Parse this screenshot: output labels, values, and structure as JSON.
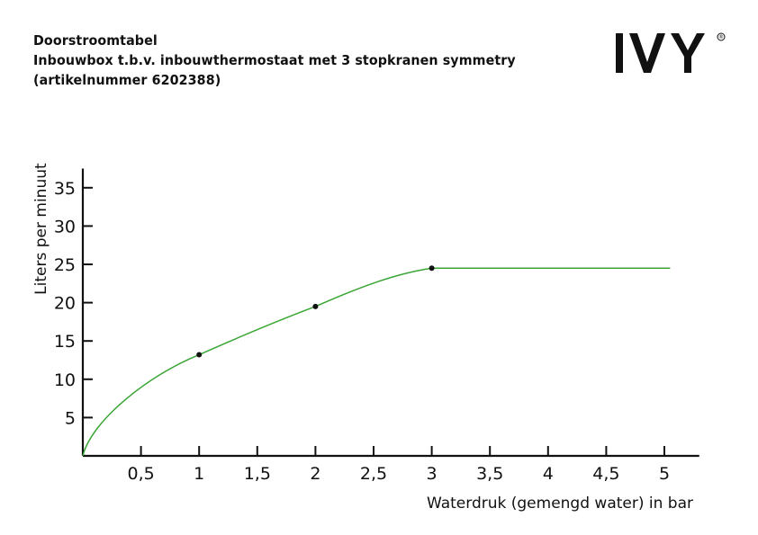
{
  "header": {
    "title_lines": [
      "Doorstroomtabel",
      "Inbouwbox t.b.v. inbouwthermostaat met 3 stopkranen symmetry",
      "(artikelnummer 6202388)"
    ],
    "logo_text": "IVY",
    "logo_mark": "®"
  },
  "chart_data": {
    "type": "line",
    "title": "Doorstroomtabel",
    "xlabel": "Waterdruk (gemengd water) in bar",
    "ylabel": "Liters per minuut",
    "xlim": [
      0,
      5.2
    ],
    "ylim": [
      0,
      37.5
    ],
    "x_ticks": [
      0.5,
      1,
      1.5,
      2,
      2.5,
      3,
      3.5,
      4,
      4.5,
      5
    ],
    "x_tick_labels": [
      "0,5",
      "1",
      "1,5",
      "2",
      "2,5",
      "3",
      "3,5",
      "4",
      "4,5",
      "5"
    ],
    "y_ticks": [
      5,
      10,
      15,
      20,
      25,
      30,
      35
    ],
    "y_tick_labels": [
      "5",
      "10",
      "15",
      "20",
      "25",
      "30",
      "35"
    ],
    "grid": false,
    "line_color": "#3aa534",
    "series": [
      {
        "x": [
          0,
          1,
          2,
          3,
          5.05
        ],
        "y": [
          0,
          13.2,
          19.5,
          24.5,
          24.5
        ]
      }
    ],
    "markers": [
      {
        "x": 1,
        "y": 13.2
      },
      {
        "x": 2,
        "y": 19.5
      },
      {
        "x": 3,
        "y": 24.5
      }
    ]
  }
}
